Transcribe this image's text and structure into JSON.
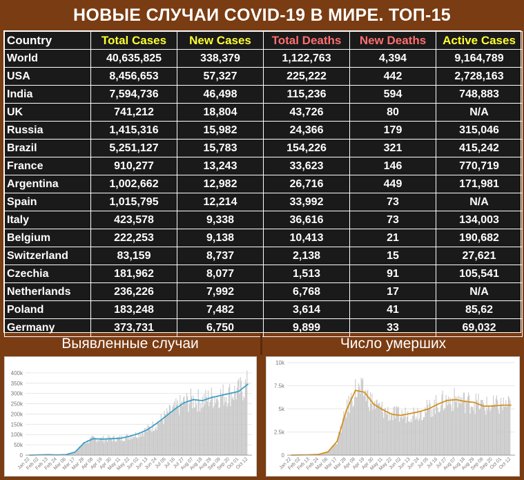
{
  "title": "НОВЫЕ СЛУЧАИ COVID-19 В МИРЕ. ТОП-15",
  "table": {
    "headers": [
      {
        "label": "Country",
        "color": "#ffffff"
      },
      {
        "label": "Total Cases",
        "color": "#ffff33"
      },
      {
        "label": "New Cases",
        "color": "#ffff33"
      },
      {
        "label": "Total Deaths",
        "color": "#ff6f6f"
      },
      {
        "label": "New Deaths",
        "color": "#ff6f6f"
      },
      {
        "label": "Active Cases",
        "color": "#ffff33"
      }
    ],
    "rows": [
      [
        "World",
        "40,635,825",
        "338,379",
        "1,122,763",
        "4,394",
        "9,164,789"
      ],
      [
        "USA",
        "8,456,653",
        "57,327",
        "225,222",
        "442",
        "2,728,163"
      ],
      [
        "India",
        "7,594,736",
        "46,498",
        "115,236",
        "594",
        "748,883"
      ],
      [
        "UK",
        "741,212",
        "18,804",
        "43,726",
        "80",
        "N/A"
      ],
      [
        "Russia",
        "1,415,316",
        "15,982",
        "24,366",
        "179",
        "315,046"
      ],
      [
        "Brazil",
        "5,251,127",
        "15,783",
        "154,226",
        "321",
        "415,242"
      ],
      [
        "France",
        "910,277",
        "13,243",
        "33,623",
        "146",
        "770,719"
      ],
      [
        "Argentina",
        "1,002,662",
        "12,982",
        "26,716",
        "449",
        "171,981"
      ],
      [
        "Spain",
        "1,015,795",
        "12,214",
        "33,992",
        "73",
        "N/A"
      ],
      [
        "Italy",
        "423,578",
        "9,338",
        "36,616",
        "73",
        "134,003"
      ],
      [
        "Belgium",
        "222,253",
        "9,138",
        "10,413",
        "21",
        "190,682"
      ],
      [
        "Switzerland",
        "83,159",
        "8,737",
        "2,138",
        "15",
        "27,621"
      ],
      [
        "Czechia",
        "181,962",
        "8,077",
        "1,513",
        "91",
        "105,541"
      ],
      [
        "Netherlands",
        "236,226",
        "7,992",
        "6,768",
        "17",
        "N/A"
      ],
      [
        "Poland",
        "183,248",
        "7,482",
        "3,614",
        "41",
        "85,62"
      ],
      [
        "Germany",
        "373,731",
        "6,750",
        "9,899",
        "33",
        "69,032"
      ]
    ]
  },
  "panels": {
    "left_title": "Выявленные случаи",
    "right_title": "Число умерших"
  },
  "chart_data": [
    {
      "type": "bar",
      "overlay": "line (7-day average)",
      "bar_color": "#c8c8c8",
      "line_color": "#3aa0c8",
      "ylim": [
        0,
        450000
      ],
      "yticks": [
        "0",
        "50k",
        "100k",
        "150k",
        "200k",
        "250k",
        "300k",
        "350k",
        "400k"
      ],
      "xticks": [
        "Jan 22",
        "Feb 02",
        "Feb 13",
        "Feb 24",
        "Mar 06",
        "Mar 17",
        "Mar 28",
        "Apr 08",
        "Apr 19",
        "Apr 30",
        "May 11",
        "May 22",
        "Jun 02",
        "Jun 13",
        "Jun 24",
        "Jul 05",
        "Jul 16",
        "Jul 27",
        "Aug 07",
        "Aug 18",
        "Aug 29",
        "Sep 09",
        "Sep 20",
        "Oct 01",
        "Oct 12"
      ],
      "series": [
        {
          "values": [
            0,
            1500,
            2500,
            1000,
            2500,
            15000,
            60000,
            80000,
            78000,
            80000,
            82000,
            92000,
            105000,
            125000,
            155000,
            190000,
            225000,
            255000,
            270000,
            265000,
            280000,
            290000,
            300000,
            310000,
            345000
          ]
        }
      ]
    },
    {
      "type": "bar",
      "overlay": "line (7-day average)",
      "bar_color": "#c8c8c8",
      "line_color": "#d4901c",
      "ylim": [
        0,
        10000
      ],
      "yticks": [
        "0",
        "2.5k",
        "5k",
        "7.5k",
        "10k"
      ],
      "xticks": [
        "Jan 22",
        "Feb 02",
        "Feb 13",
        "Feb 24",
        "Mar 06",
        "Mar 17",
        "Mar 28",
        "Apr 08",
        "Apr 19",
        "Apr 30",
        "May 11",
        "May 22",
        "Jun 02",
        "Jun 13",
        "Jun 24",
        "Jul 05",
        "Jul 16",
        "Jul 27",
        "Aug 07",
        "Aug 18",
        "Aug 29",
        "Sep 09",
        "Sep 20",
        "Oct 01",
        "Oct 12"
      ],
      "series": [
        {
          "values": [
            0,
            20,
            40,
            80,
            350,
            1500,
            4800,
            7000,
            6800,
            5500,
            4900,
            4400,
            4300,
            4500,
            4700,
            5000,
            5500,
            5900,
            6000,
            5800,
            5700,
            5300,
            5300,
            5400,
            5400
          ]
        }
      ]
    }
  ]
}
